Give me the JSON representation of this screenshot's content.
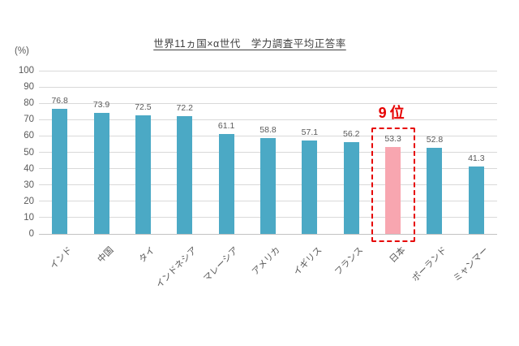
{
  "chart_data": {
    "type": "bar",
    "title": "世界11ヵ国×α世代　学力調査平均正答率",
    "y_unit": "(%)",
    "categories": [
      "インド",
      "中国",
      "タイ",
      "インドネシア",
      "マレーシア",
      "アメリカ",
      "イギリス",
      "フランス",
      "日本",
      "ポーランド",
      "ミャンマー"
    ],
    "values": [
      76.8,
      73.9,
      72.5,
      72.2,
      61.1,
      58.8,
      57.1,
      56.2,
      53.3,
      52.8,
      41.3
    ],
    "ylim": [
      0,
      100
    ],
    "ytick_step": 10,
    "grid": true,
    "legend": "none",
    "colors": {
      "bar": "#4ba9c5",
      "grid": "#d9d9d9",
      "axis": "#c2c2c2",
      "text": "#595959",
      "title": "#404040"
    },
    "highlight": {
      "index": 8,
      "category": "日本",
      "value": 53.3,
      "rank_label": "9位",
      "bar_color": "#f8a6b0",
      "box_color": "#e60000"
    }
  }
}
